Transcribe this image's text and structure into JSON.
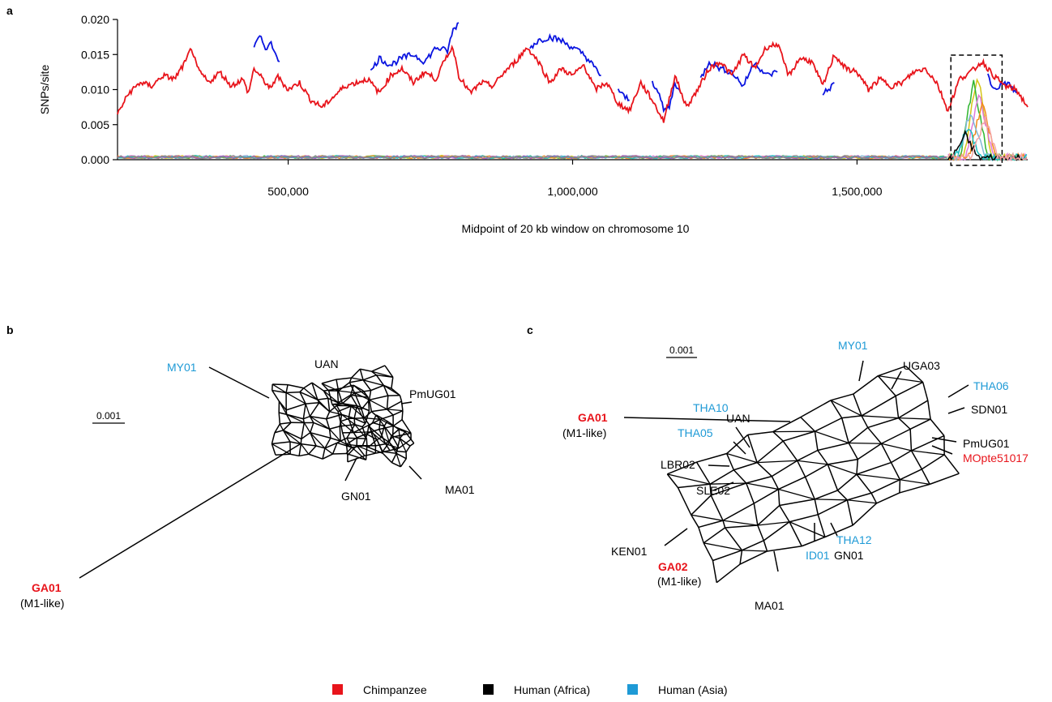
{
  "colors": {
    "chimpanzee": "#e8141b",
    "human_africa": "#000000",
    "human_asia": "#1e9ad6",
    "human_windows": "#0a14e0"
  },
  "panels": {
    "a": "a",
    "b": "b",
    "c": "c"
  },
  "chart_data": [
    {
      "panel": "a",
      "type": "line",
      "title": "",
      "xlabel": "Midpoint of 20 kb window on chromosome 10",
      "ylabel": "SNPs/site",
      "xlim": [
        200000,
        1800000
      ],
      "ylim": [
        0,
        0.02
      ],
      "x_ticks": [
        500000,
        1000000,
        1500000
      ],
      "x_tick_labels": [
        "500,000",
        "1,000,000",
        "1,500,000"
      ],
      "y_ticks": [
        0,
        0.005,
        0.01,
        0.015,
        0.02
      ],
      "y_tick_labels": [
        "0.000",
        "0.005",
        "0.010",
        "0.015",
        "0.020"
      ],
      "grid": false,
      "highlight_region": [
        1665000,
        1755000
      ],
      "series": [
        {
          "color_key": "chimpanzee",
          "x": [
            200000,
            220000,
            240000,
            260000,
            280000,
            300000,
            320000,
            330000,
            340000,
            360000,
            380000,
            400000,
            420000,
            430000,
            440000,
            460000,
            470000,
            480000,
            500000,
            520000,
            540000,
            560000,
            580000,
            600000,
            620000,
            640000,
            660000,
            680000,
            700000,
            720000,
            740000,
            760000,
            780000,
            790000,
            800000,
            820000,
            840000,
            860000,
            880000,
            900000,
            920000,
            940000,
            960000,
            980000,
            1000000,
            1020000,
            1040000,
            1060000,
            1080000,
            1100000,
            1120000,
            1140000,
            1160000,
            1180000,
            1200000,
            1220000,
            1240000,
            1260000,
            1280000,
            1300000,
            1320000,
            1340000,
            1360000,
            1380000,
            1400000,
            1420000,
            1440000,
            1460000,
            1480000,
            1500000,
            1520000,
            1540000,
            1560000,
            1580000,
            1600000,
            1620000,
            1640000,
            1660000,
            1680000,
            1700000,
            1720000,
            1740000,
            1760000,
            1780000,
            1800000
          ],
          "values": [
            0.0065,
            0.0095,
            0.011,
            0.0105,
            0.012,
            0.0115,
            0.014,
            0.016,
            0.013,
            0.011,
            0.0125,
            0.0105,
            0.0115,
            0.0095,
            0.013,
            0.011,
            0.01,
            0.012,
            0.01,
            0.011,
            0.0085,
            0.0075,
            0.009,
            0.0105,
            0.011,
            0.0115,
            0.0095,
            0.012,
            0.013,
            0.011,
            0.0125,
            0.0115,
            0.015,
            0.016,
            0.012,
            0.0095,
            0.011,
            0.0105,
            0.0125,
            0.014,
            0.016,
            0.014,
            0.011,
            0.013,
            0.012,
            0.0135,
            0.01,
            0.011,
            0.008,
            0.007,
            0.011,
            0.0085,
            0.0055,
            0.012,
            0.0075,
            0.01,
            0.013,
            0.014,
            0.012,
            0.015,
            0.013,
            0.016,
            0.0165,
            0.012,
            0.0145,
            0.014,
            0.0105,
            0.015,
            0.013,
            0.0125,
            0.01,
            0.0115,
            0.0105,
            0.011,
            0.0125,
            0.013,
            0.011,
            0.007,
            0.0115,
            0.0125,
            0.014,
            0.012,
            0.0105,
            0.01,
            0.0075
          ]
        },
        {
          "color_key": "human_windows",
          "segments": [
            {
              "x": [
                440000,
                450000,
                460000,
                470000,
                480000,
                485000
              ],
              "values": [
                0.016,
                0.0175,
                0.016,
                0.0165,
                0.015,
                0.014
              ]
            },
            {
              "x": [
                645000,
                660000,
                680000,
                700000,
                720000,
                740000,
                760000,
                780000,
                790000,
                800000
              ],
              "values": [
                0.0125,
                0.0145,
                0.0135,
                0.0145,
                0.015,
                0.014,
                0.016,
                0.0155,
                0.0185,
                0.0195
              ]
            },
            {
              "x": [
                925000,
                940000,
                960000,
                980000,
                1000000,
                1020000,
                1040000,
                1050000
              ],
              "values": [
                0.016,
                0.017,
                0.0175,
                0.017,
                0.016,
                0.015,
                0.013,
                0.012
              ]
            },
            {
              "x": [
                1080000,
                1090000,
                1100000
              ],
              "values": [
                0.01,
                0.009,
                0.0085
              ]
            },
            {
              "x": [
                1140000,
                1150000,
                1160000,
                1170000,
                1180000,
                1190000
              ],
              "values": [
                0.011,
                0.01,
                0.007,
                0.0075,
                0.011,
                0.0095
              ]
            },
            {
              "x": [
                1225000,
                1240000,
                1260000,
                1280000,
                1300000,
                1320000,
                1340000,
                1360000
              ],
              "values": [
                0.0115,
                0.014,
                0.013,
                0.0125,
                0.0105,
                0.014,
                0.012,
                0.0125
              ]
            },
            {
              "x": [
                1440000,
                1450000,
                1460000
              ],
              "values": [
                0.0095,
                0.01,
                0.011
              ]
            },
            {
              "x": [
                1730000,
                1740000,
                1750000,
                1760000,
                1770000,
                1780000
              ],
              "values": [
                0.012,
                0.01,
                0.0105,
                0.011,
                0.0105,
                0.0095
              ]
            }
          ]
        }
      ],
      "baseline_noise_level": 0.0005,
      "peak_region_series": [
        {
          "color": "#d6c417",
          "peak_x": 1712000,
          "peak": 0.0125
        },
        {
          "color": "#2fb52f",
          "peak_x": 1705000,
          "peak": 0.011
        },
        {
          "color": "#e07ad9",
          "peak_x": 1715000,
          "peak": 0.0095
        },
        {
          "color": "#f28c1b",
          "peak_x": 1720000,
          "peak": 0.008
        },
        {
          "color": "#7fb8d6",
          "peak_x": 1700000,
          "peak": 0.007
        },
        {
          "color": "#1bbfbf",
          "peak_x": 1695000,
          "peak": 0.0045
        },
        {
          "color": "#000000",
          "peak_x": 1690000,
          "peak": 0.0035
        },
        {
          "color": "#f5a3a3",
          "peak_x": 1725000,
          "peak": 0.006
        }
      ]
    },
    {
      "panel": "b",
      "type": "network",
      "scale_bar": "0.001",
      "labels": [
        {
          "text": "MY01",
          "color_key": "human_asia",
          "bold": false
        },
        {
          "text": "UAN",
          "color_key": "human_africa",
          "bold": false
        },
        {
          "text": "PmUG01",
          "color_key": "human_africa",
          "bold": false
        },
        {
          "text": "MA01",
          "color_key": "human_africa",
          "bold": false
        },
        {
          "text": "GN01",
          "color_key": "human_africa",
          "bold": false
        },
        {
          "text": "GA01",
          "color_key": "chimpanzee",
          "bold": true
        },
        {
          "text": "(M1-like)",
          "color_key": "human_africa",
          "bold": false
        }
      ]
    },
    {
      "panel": "c",
      "type": "network",
      "scale_bar": "0.001",
      "labels": [
        {
          "text": "MY01",
          "color_key": "human_asia",
          "bold": false
        },
        {
          "text": "UGA03",
          "color_key": "human_africa",
          "bold": false
        },
        {
          "text": "THA06",
          "color_key": "human_asia",
          "bold": false
        },
        {
          "text": "SDN01",
          "color_key": "human_africa",
          "bold": false
        },
        {
          "text": "THA10",
          "color_key": "human_asia",
          "bold": false
        },
        {
          "text": "UAN",
          "color_key": "human_africa",
          "bold": false
        },
        {
          "text": "THA05",
          "color_key": "human_asia",
          "bold": false
        },
        {
          "text": "PmUG01",
          "color_key": "human_africa",
          "bold": false
        },
        {
          "text": "MOpte51017",
          "color_key": "chimpanzee",
          "bold": false
        },
        {
          "text": "LBR02",
          "color_key": "human_africa",
          "bold": false
        },
        {
          "text": "SLE02",
          "color_key": "human_africa",
          "bold": false
        },
        {
          "text": "KEN01",
          "color_key": "human_africa",
          "bold": false
        },
        {
          "text": "GA02",
          "color_key": "chimpanzee",
          "bold": true
        },
        {
          "text": "(M1-like)",
          "color_key": "human_africa",
          "bold": false
        },
        {
          "text": "ID01",
          "color_key": "human_asia",
          "bold": false
        },
        {
          "text": "GN01",
          "color_key": "human_africa",
          "bold": false
        },
        {
          "text": "THA12",
          "color_key": "human_asia",
          "bold": false
        },
        {
          "text": "MA01",
          "color_key": "human_africa",
          "bold": false
        },
        {
          "text": "GA01",
          "color_key": "chimpanzee",
          "bold": true
        },
        {
          "text": "(M1-like)",
          "color_key": "human_africa",
          "bold": false
        }
      ]
    }
  ],
  "legend": [
    {
      "label": "Chimpanzee",
      "color_key": "chimpanzee"
    },
    {
      "label": "Human (Africa)",
      "color_key": "human_africa"
    },
    {
      "label": "Human (Asia)",
      "color_key": "human_asia"
    }
  ]
}
